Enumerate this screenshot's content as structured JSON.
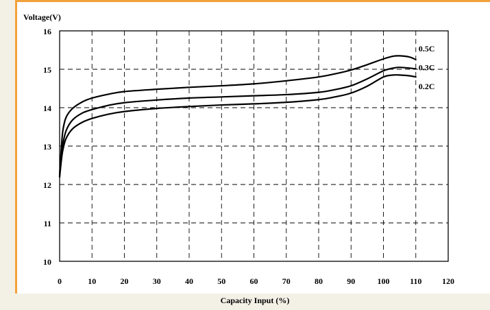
{
  "chart_data": {
    "type": "line",
    "ylabel": "Voltage(V)",
    "xlabel": "Capacity Input (%)",
    "xlim": [
      0,
      120
    ],
    "ylim": [
      10,
      16
    ],
    "x_ticks": [
      0,
      10,
      20,
      30,
      40,
      50,
      60,
      70,
      80,
      90,
      100,
      110,
      120
    ],
    "y_ticks": [
      10,
      11,
      12,
      13,
      14,
      15,
      16
    ],
    "grid": true,
    "series": [
      {
        "name": "0.5C",
        "x": [
          0,
          0.5,
          1,
          2,
          4,
          7,
          10,
          15,
          20,
          30,
          40,
          50,
          60,
          70,
          80,
          85,
          90,
          95,
          100,
          103,
          105,
          108,
          110
        ],
        "y": [
          12.25,
          12.9,
          13.4,
          13.75,
          13.98,
          14.15,
          14.25,
          14.35,
          14.42,
          14.48,
          14.53,
          14.57,
          14.62,
          14.7,
          14.8,
          14.88,
          14.98,
          15.12,
          15.27,
          15.34,
          15.35,
          15.32,
          15.25
        ]
      },
      {
        "name": "0.3C",
        "x": [
          0,
          0.5,
          1,
          2,
          4,
          7,
          10,
          15,
          20,
          30,
          40,
          50,
          60,
          70,
          80,
          85,
          90,
          95,
          100,
          103,
          105,
          108,
          110
        ],
        "y": [
          12.2,
          12.75,
          13.05,
          13.4,
          13.68,
          13.86,
          13.95,
          14.06,
          14.13,
          14.2,
          14.25,
          14.28,
          14.31,
          14.34,
          14.4,
          14.47,
          14.57,
          14.75,
          14.96,
          15.03,
          15.05,
          15.03,
          15.01
        ]
      },
      {
        "name": "0.2C",
        "x": [
          0,
          0.5,
          1,
          2,
          4,
          7,
          10,
          15,
          20,
          30,
          40,
          50,
          60,
          70,
          80,
          85,
          90,
          95,
          100,
          103,
          105,
          108,
          110
        ],
        "y": [
          12.2,
          12.6,
          12.9,
          13.2,
          13.45,
          13.62,
          13.72,
          13.83,
          13.9,
          13.98,
          14.03,
          14.07,
          14.1,
          14.14,
          14.21,
          14.28,
          14.38,
          14.56,
          14.8,
          14.85,
          14.85,
          14.83,
          14.8
        ]
      }
    ]
  }
}
